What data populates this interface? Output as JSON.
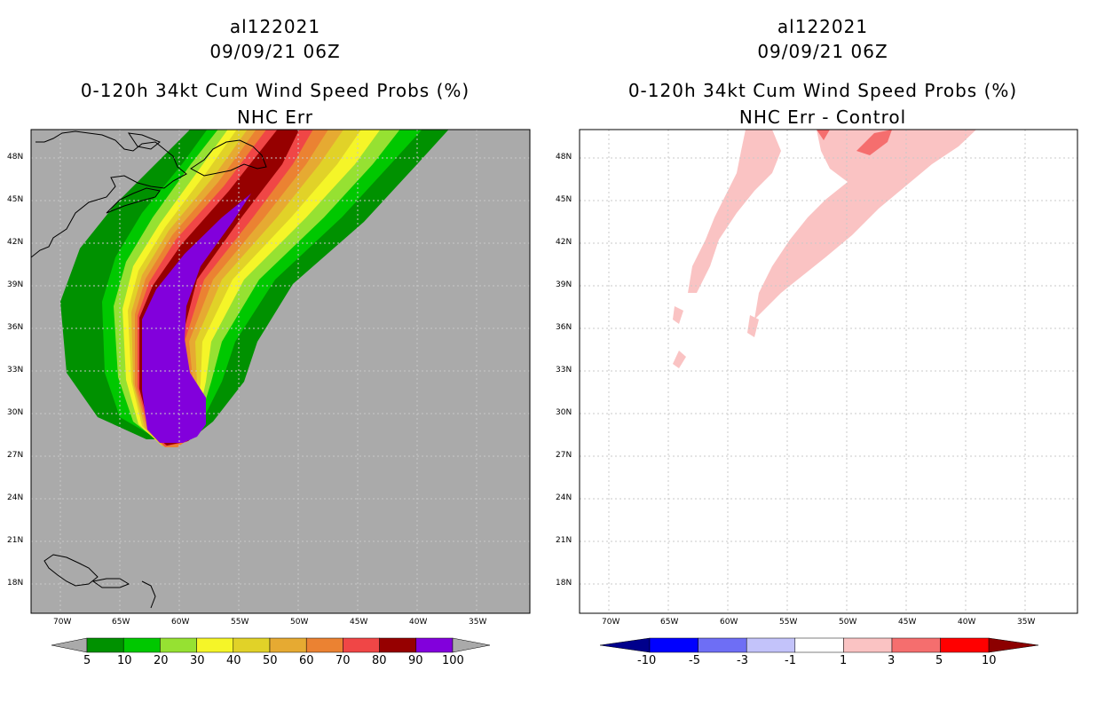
{
  "left": {
    "title_lines": [
      "al122021",
      "09/09/21 06Z",
      "0-120h 34kt Cum Wind Speed Probs (%)",
      "NHC Err"
    ],
    "colorbar_labels": [
      "5",
      "10",
      "20",
      "30",
      "40",
      "50",
      "60",
      "70",
      "80",
      "90",
      "100"
    ],
    "colorbar_colors": [
      "#009100",
      "#00c800",
      "#96e132",
      "#f5f528",
      "#e1d228",
      "#e6aa32",
      "#eb8232",
      "#f04646",
      "#960000",
      "#8200dc"
    ],
    "background_color": "#aaaaaa"
  },
  "right": {
    "title_lines": [
      "al122021",
      "09/09/21 06Z",
      "0-120h 34kt Cum Wind Speed Probs (%)",
      "NHC Err - Control"
    ],
    "colorbar_labels": [
      "-10",
      "-5",
      "-3",
      "-1",
      "1",
      "3",
      "5",
      "10"
    ],
    "colorbar_colors": [
      "#00008c",
      "#0000ff",
      "#6e6ef5",
      "#c3c3fa",
      "#ffffff",
      "#fac3c3",
      "#f56e6e",
      "#ff0000",
      "#8c0000"
    ]
  },
  "axes": {
    "lat_labels": [
      "48N",
      "45N",
      "42N",
      "39N",
      "36N",
      "33N",
      "30N",
      "27N",
      "24N",
      "21N",
      "18N"
    ],
    "lon_labels": [
      "70W",
      "65W",
      "60W",
      "55W",
      "50W",
      "45W",
      "40W",
      "35W"
    ]
  }
}
